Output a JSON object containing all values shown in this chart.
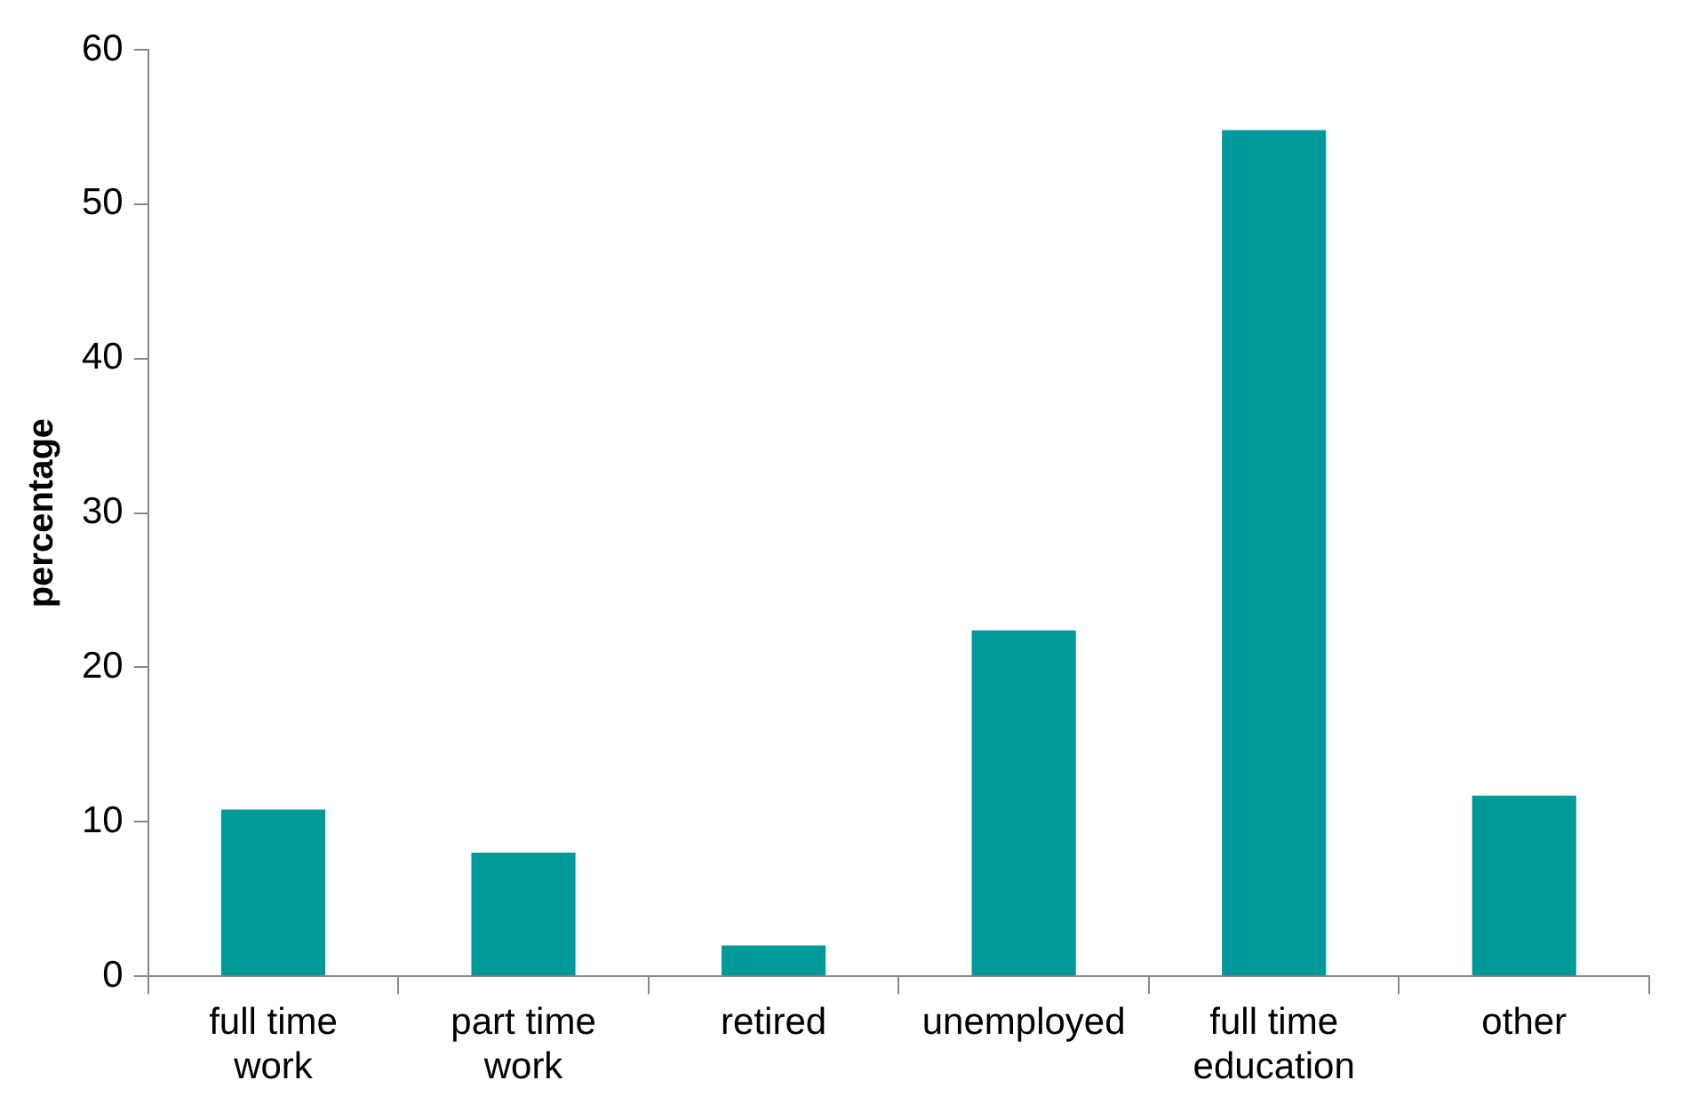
{
  "chart_data": {
    "type": "bar",
    "ylabel": "percentage",
    "categories": [
      "full time work",
      "part time work",
      "retired",
      "unemployed",
      "full time education",
      "other"
    ],
    "values": [
      10.8,
      8.0,
      2.0,
      22.4,
      54.8,
      11.7
    ],
    "color": "#009999",
    "ylim": [
      0,
      60
    ],
    "yticks": [
      0,
      10,
      20,
      30,
      40,
      50,
      60
    ],
    "grid": false,
    "legend": false
  }
}
